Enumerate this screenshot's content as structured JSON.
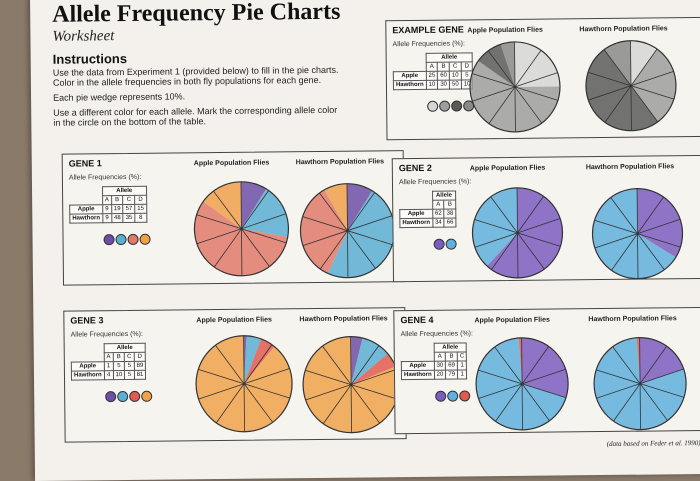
{
  "header": {
    "title": "Allele Frequency Pie Charts",
    "subtitle": "Worksheet"
  },
  "instructions": {
    "heading": "Instructions",
    "lines": [
      "Use the data from Experiment 1 (provided below) to fill in the pie charts.",
      "Color in the allele frequencies in both fly populations for each gene.",
      "Each pie wedge represents 10%.",
      "Use a different color for each allele. Mark the corresponding allele color",
      "in the circle on the bottom of the table."
    ]
  },
  "common": {
    "freq_label": "Allele Frequencies (%):",
    "allele_label": "Allele",
    "apple_row": "Apple",
    "hawthorn_row": "Hawthorn",
    "apple_pop": "Apple Population Flies",
    "hawthorn_pop": "Hawthorn Population Flies"
  },
  "genes": [
    {
      "title": "EXAMPLE GENE",
      "alleles": [
        "A",
        "B",
        "C",
        "D"
      ],
      "apple": [
        25,
        60,
        10,
        5
      ],
      "hawthorn": [
        10,
        30,
        50,
        10
      ],
      "colors": [
        "#d6d6d6",
        "#9e9e9e",
        "#5a5a5a",
        "#8a8a8a"
      ]
    },
    {
      "title": "GENE 1",
      "alleles": [
        "A",
        "B",
        "C",
        "D"
      ],
      "apple": [
        9,
        19,
        57,
        15
      ],
      "hawthorn": [
        9,
        48,
        35,
        8
      ],
      "colors": [
        "#6c4fa6",
        "#5aaed2",
        "#e07a6a",
        "#f0a04a"
      ]
    },
    {
      "title": "GENE 2",
      "alleles": [
        "A",
        "B"
      ],
      "apple": [
        62,
        38
      ],
      "hawthorn": [
        34,
        66
      ],
      "colors": [
        "#7b5cbf",
        "#5fb0dc"
      ]
    },
    {
      "title": "GENE 3",
      "alleles": [
        "A",
        "B",
        "C",
        "D"
      ],
      "apple": [
        1,
        5,
        5,
        89
      ],
      "hawthorn": [
        4,
        10,
        5,
        81
      ],
      "colors": [
        "#6c4fa6",
        "#5aaed2",
        "#e05a50",
        "#f0a24a"
      ]
    },
    {
      "title": "GENE 4",
      "alleles": [
        "A",
        "B",
        "C"
      ],
      "apple": [
        30,
        69,
        1
      ],
      "hawthorn": [
        20,
        79,
        1
      ],
      "colors": [
        "#7b5cbf",
        "#5fb0dc",
        "#e05a50"
      ]
    }
  ],
  "footer": {
    "note": "(data based on Feder et al. 1990)"
  }
}
